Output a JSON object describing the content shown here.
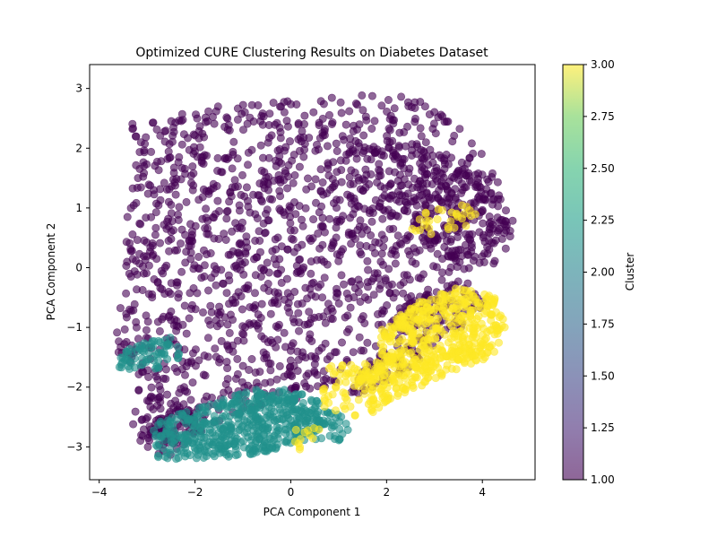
{
  "chart_data": {
    "type": "scatter",
    "title": "Optimized CURE Clustering Results on Diabetes Dataset",
    "xlabel": "PCA Component 1",
    "ylabel": "PCA Component 2",
    "xlim": [
      -4.2,
      5.1
    ],
    "ylim": [
      -3.55,
      3.4
    ],
    "x_ticks": [
      -4,
      -2,
      0,
      2,
      4
    ],
    "y_ticks": [
      -3,
      -2,
      -1,
      0,
      1,
      2,
      3
    ],
    "grid": false,
    "marker_alpha": 0.6,
    "colorbar": {
      "label": "Cluster",
      "range": [
        1.0,
        3.0
      ],
      "ticks": [
        "1.00",
        "1.25",
        "1.50",
        "1.75",
        "2.00",
        "2.25",
        "2.50",
        "2.75",
        "3.00"
      ],
      "colormap": "viridis"
    },
    "colors": {
      "cluster_1": "#440154",
      "cluster_2": "#21918c",
      "cluster_3": "#fde725"
    },
    "series": [
      {
        "cluster": 1,
        "regions": [
          {
            "polygon": [
              [
                -3.4,
                2.4
              ],
              [
                -2.5,
                2.55
              ],
              [
                -1.2,
                2.75
              ],
              [
                0.0,
                2.85
              ],
              [
                1.2,
                2.9
              ],
              [
                2.6,
                2.85
              ],
              [
                3.4,
                2.45
              ],
              [
                4.0,
                1.9
              ],
              [
                4.5,
                1.2
              ],
              [
                4.6,
                0.5
              ],
              [
                4.3,
                0.0
              ],
              [
                3.2,
                -0.2
              ],
              [
                2.2,
                -0.85
              ],
              [
                1.6,
                -1.4
              ],
              [
                1.0,
                -1.9
              ],
              [
                0.4,
                -2.15
              ],
              [
                -0.6,
                -2.35
              ],
              [
                -1.6,
                -2.6
              ],
              [
                -2.8,
                -3.0
              ],
              [
                -3.1,
                -2.4
              ],
              [
                -3.3,
                -1.6
              ],
              [
                -3.7,
                -1.5
              ],
              [
                -3.6,
                -0.6
              ],
              [
                -3.4,
                0.2
              ],
              [
                -3.5,
                1.0
              ],
              [
                -3.4,
                1.8
              ]
            ],
            "count": 1400,
            "seed": 11
          },
          {
            "polygon": [
              [
                1.0,
                2.0
              ],
              [
                2.4,
                2.2
              ],
              [
                4.0,
                1.6
              ],
              [
                4.7,
                0.8
              ],
              [
                4.5,
                0.3
              ],
              [
                3.4,
                0.0
              ],
              [
                2.2,
                0.8
              ],
              [
                1.2,
                1.0
              ]
            ],
            "count": 260,
            "seed": 12
          },
          {
            "polygon": [
              [
                2.4,
                -0.5
              ],
              [
                3.6,
                -0.2
              ],
              [
                4.2,
                -0.5
              ],
              [
                3.2,
                -1.3
              ],
              [
                2.0,
                -1.9
              ],
              [
                1.2,
                -2.2
              ],
              [
                1.6,
                -1.5
              ]
            ],
            "count": 160,
            "seed": 13
          },
          {
            "polygon": [
              [
                -3.4,
                -2.4
              ],
              [
                -2.2,
                -2.3
              ],
              [
                -1.8,
                -2.7
              ],
              [
                -2.6,
                -3.2
              ],
              [
                -3.2,
                -2.9
              ]
            ],
            "count": 80,
            "seed": 14
          }
        ]
      },
      {
        "cluster": 2,
        "regions": [
          {
            "polygon": [
              [
                -2.9,
                -2.6
              ],
              [
                -1.8,
                -2.3
              ],
              [
                -0.6,
                -2.0
              ],
              [
                0.4,
                -2.1
              ],
              [
                0.9,
                -2.5
              ],
              [
                0.3,
                -2.9
              ],
              [
                -0.6,
                -3.1
              ],
              [
                -1.6,
                -3.2
              ],
              [
                -2.8,
                -3.2
              ]
            ],
            "count": 520,
            "seed": 21
          },
          {
            "polygon": [
              [
                -3.7,
                -1.5
              ],
              [
                -3.0,
                -1.2
              ],
              [
                -2.4,
                -1.1
              ],
              [
                -2.2,
                -1.5
              ],
              [
                -2.8,
                -1.7
              ],
              [
                -3.6,
                -1.7
              ]
            ],
            "count": 70,
            "seed": 22
          },
          {
            "polygon": [
              [
                0.2,
                -2.4
              ],
              [
                1.2,
                -2.4
              ],
              [
                1.4,
                -2.8
              ],
              [
                0.6,
                -3.0
              ],
              [
                0.1,
                -2.8
              ]
            ],
            "count": 40,
            "seed": 23
          }
        ]
      },
      {
        "cluster": 3,
        "regions": [
          {
            "polygon": [
              [
                1.8,
                -1.1
              ],
              [
                2.6,
                -0.6
              ],
              [
                3.6,
                -0.3
              ],
              [
                4.3,
                -0.5
              ],
              [
                4.5,
                -1.0
              ],
              [
                4.2,
                -1.5
              ],
              [
                3.2,
                -1.8
              ],
              [
                2.4,
                -2.1
              ],
              [
                1.6,
                -2.4
              ],
              [
                1.3,
                -1.9
              ],
              [
                1.9,
                -1.5
              ]
            ],
            "count": 560,
            "seed": 31
          },
          {
            "polygon": [
              [
                2.6,
                0.9
              ],
              [
                3.6,
                1.1
              ],
              [
                4.0,
                0.8
              ],
              [
                3.1,
                0.5
              ],
              [
                2.5,
                0.6
              ]
            ],
            "count": 30,
            "seed": 32
          },
          {
            "polygon": [
              [
                0.8,
                -1.6
              ],
              [
                1.6,
                -1.6
              ],
              [
                1.9,
                -2.4
              ],
              [
                1.2,
                -2.6
              ],
              [
                0.6,
                -2.3
              ]
            ],
            "count": 60,
            "seed": 33
          },
          {
            "polygon": [
              [
                0.0,
                -2.7
              ],
              [
                0.6,
                -2.6
              ],
              [
                0.8,
                -3.0
              ],
              [
                0.1,
                -3.1
              ]
            ],
            "count": 12,
            "seed": 34
          }
        ]
      }
    ]
  }
}
